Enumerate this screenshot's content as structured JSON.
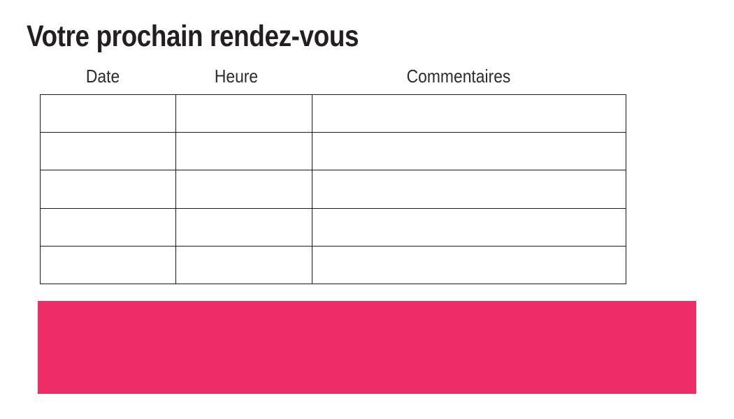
{
  "page": {
    "title": "Votre prochain rendez-vous",
    "background": "#FFFFFF"
  },
  "appointment_table": {
    "columns": [
      {
        "label": "Date"
      },
      {
        "label": "Heure"
      },
      {
        "label": "Commentaires"
      }
    ],
    "rows": [
      {
        "date": "",
        "heure": "",
        "commentaires": ""
      },
      {
        "date": "",
        "heure": "",
        "commentaires": ""
      },
      {
        "date": "",
        "heure": "",
        "commentaires": ""
      },
      {
        "date": "",
        "heure": "",
        "commentaires": ""
      },
      {
        "date": "",
        "heure": "",
        "commentaires": ""
      }
    ]
  },
  "banner": {
    "text": ""
  },
  "colors": {
    "accent_pink": "#EE2C68",
    "table_border": "#1A1A1A",
    "title_text": "#231F20",
    "header_text": "#2B2B2B"
  }
}
